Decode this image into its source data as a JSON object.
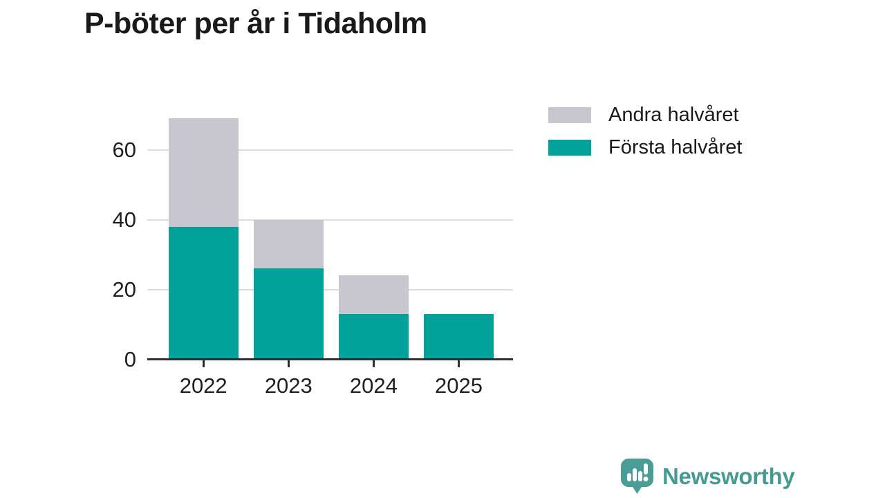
{
  "title": "P-böter per år i Tidaholm",
  "chart_data": {
    "type": "bar",
    "stacked": true,
    "title": "P-böter per år i Tidaholm",
    "categories": [
      "2022",
      "2023",
      "2024",
      "2025"
    ],
    "series": [
      {
        "name": "Första halvåret",
        "color": "#00a29a",
        "values": [
          38,
          26,
          13,
          13
        ]
      },
      {
        "name": "Andra halvåret",
        "color": "#c8c6ce",
        "values": [
          31,
          14,
          11,
          0
        ]
      }
    ],
    "totals": [
      69,
      40,
      24,
      13
    ],
    "xlabel": "",
    "ylabel": "",
    "yticks": [
      0,
      20,
      40,
      60
    ],
    "ylim": [
      0,
      70
    ],
    "grid": "horizontal",
    "legend_position": "top-right"
  },
  "legend": {
    "items": [
      {
        "label": "Andra halvåret",
        "color": "#c8c6ce"
      },
      {
        "label": "Första halvåret",
        "color": "#00a29a"
      }
    ]
  },
  "footer": {
    "brand": "Newsworthy",
    "brand_color": "#459a93",
    "icon_color": "#4a9c96",
    "icon": "newsworthy-speech-bubble-chart-icon"
  },
  "colors": {
    "axis": "#2e2e2e",
    "grid": "#dcdcdc",
    "text": "#1f1f1f",
    "title_text": "#1a1a1a",
    "background": "#ffffff"
  }
}
